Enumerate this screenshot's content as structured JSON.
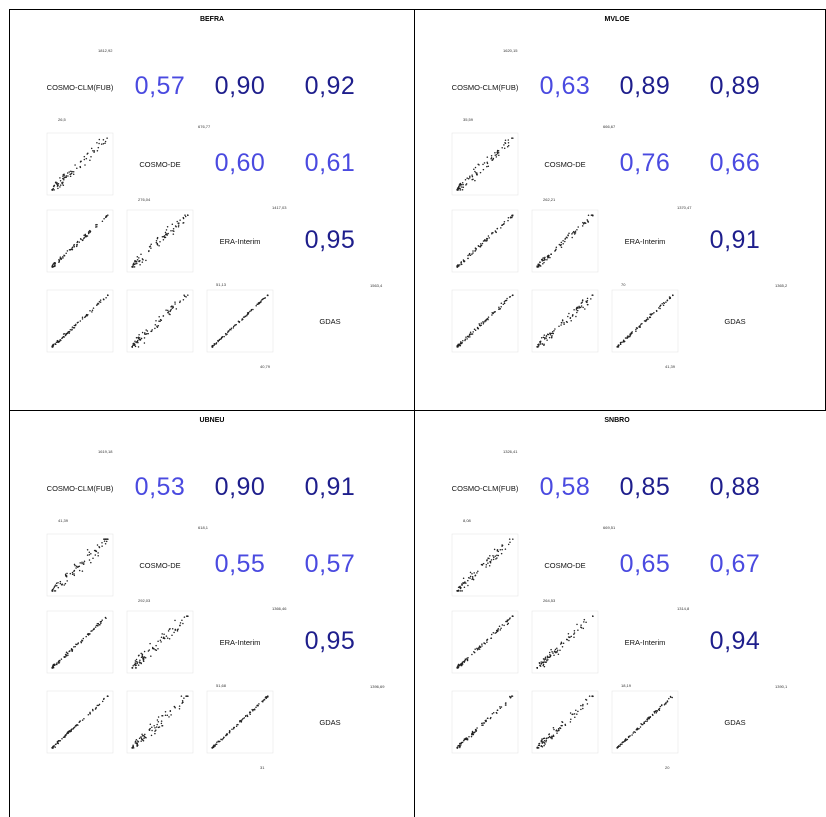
{
  "variables": [
    "COSMO-CLM(FUB)",
    "COSMO-DE",
    "ERA-Interim",
    "GDAS"
  ],
  "colors": {
    "moderate": "#4a4ae0",
    "strong": "#1e1e8c",
    "points": "#222222",
    "frame": "#999999"
  },
  "chart_data": [
    {
      "type": "scatter",
      "title": "BEFRA",
      "correlations": [
        {
          "pair": [
            "COSMO-CLM(FUB)",
            "COSMO-DE"
          ],
          "value": "0,57"
        },
        {
          "pair": [
            "COSMO-CLM(FUB)",
            "ERA-Interim"
          ],
          "value": "0,90"
        },
        {
          "pair": [
            "COSMO-CLM(FUB)",
            "GDAS"
          ],
          "value": "0,92"
        },
        {
          "pair": [
            "COSMO-DE",
            "ERA-Interim"
          ],
          "value": "0,60"
        },
        {
          "pair": [
            "COSMO-DE",
            "GDAS"
          ],
          "value": "0,61"
        },
        {
          "pair": [
            "ERA-Interim",
            "GDAS"
          ],
          "value": "0,95"
        }
      ],
      "axis_ticks": [
        "1812,92",
        "26,5",
        "676,77",
        "276,04",
        "1417,03",
        "51,13",
        "1563,4",
        "40,79"
      ]
    },
    {
      "type": "scatter",
      "title": "MVLOE",
      "correlations": [
        {
          "pair": [
            "COSMO-CLM(FUB)",
            "COSMO-DE"
          ],
          "value": "0,63"
        },
        {
          "pair": [
            "COSMO-CLM(FUB)",
            "ERA-Interim"
          ],
          "value": "0,89"
        },
        {
          "pair": [
            "COSMO-CLM(FUB)",
            "GDAS"
          ],
          "value": "0,89"
        },
        {
          "pair": [
            "COSMO-DE",
            "ERA-Interim"
          ],
          "value": "0,76"
        },
        {
          "pair": [
            "COSMO-DE",
            "GDAS"
          ],
          "value": "0,66"
        },
        {
          "pair": [
            "ERA-Interim",
            "GDAS"
          ],
          "value": "0,91"
        }
      ],
      "axis_ticks": [
        "1620,15",
        "35,59",
        "666,67",
        "262,21",
        "1370,47",
        "70",
        "1365,2",
        "41,39"
      ]
    },
    {
      "type": "scatter",
      "title": "UBNEU",
      "correlations": [
        {
          "pair": [
            "COSMO-CLM(FUB)",
            "COSMO-DE"
          ],
          "value": "0,53"
        },
        {
          "pair": [
            "COSMO-CLM(FUB)",
            "ERA-Interim"
          ],
          "value": "0,90"
        },
        {
          "pair": [
            "COSMO-CLM(FUB)",
            "GDAS"
          ],
          "value": "0,91"
        },
        {
          "pair": [
            "COSMO-DE",
            "ERA-Interim"
          ],
          "value": "0,55"
        },
        {
          "pair": [
            "COSMO-DE",
            "GDAS"
          ],
          "value": "0,57"
        },
        {
          "pair": [
            "ERA-Interim",
            "GDAS"
          ],
          "value": "0,95"
        }
      ],
      "axis_ticks": [
        "1619,18",
        "41,39",
        "618,1",
        "292,03",
        "1366,46",
        "51,68",
        "1396,69",
        "31"
      ]
    },
    {
      "type": "scatter",
      "title": "SNBRO",
      "correlations": [
        {
          "pair": [
            "COSMO-CLM(FUB)",
            "COSMO-DE"
          ],
          "value": "0,58"
        },
        {
          "pair": [
            "COSMO-CLM(FUB)",
            "ERA-Interim"
          ],
          "value": "0,85"
        },
        {
          "pair": [
            "COSMO-CLM(FUB)",
            "GDAS"
          ],
          "value": "0,88"
        },
        {
          "pair": [
            "COSMO-DE",
            "ERA-Interim"
          ],
          "value": "0,65"
        },
        {
          "pair": [
            "COSMO-DE",
            "GDAS"
          ],
          "value": "0,67"
        },
        {
          "pair": [
            "ERA-Interim",
            "GDAS"
          ],
          "value": "0,94"
        }
      ],
      "axis_ticks": [
        "1326,41",
        "8,08",
        "669,51",
        "264,53",
        "1314,8",
        "18,19",
        "1390,1",
        "20"
      ]
    }
  ]
}
